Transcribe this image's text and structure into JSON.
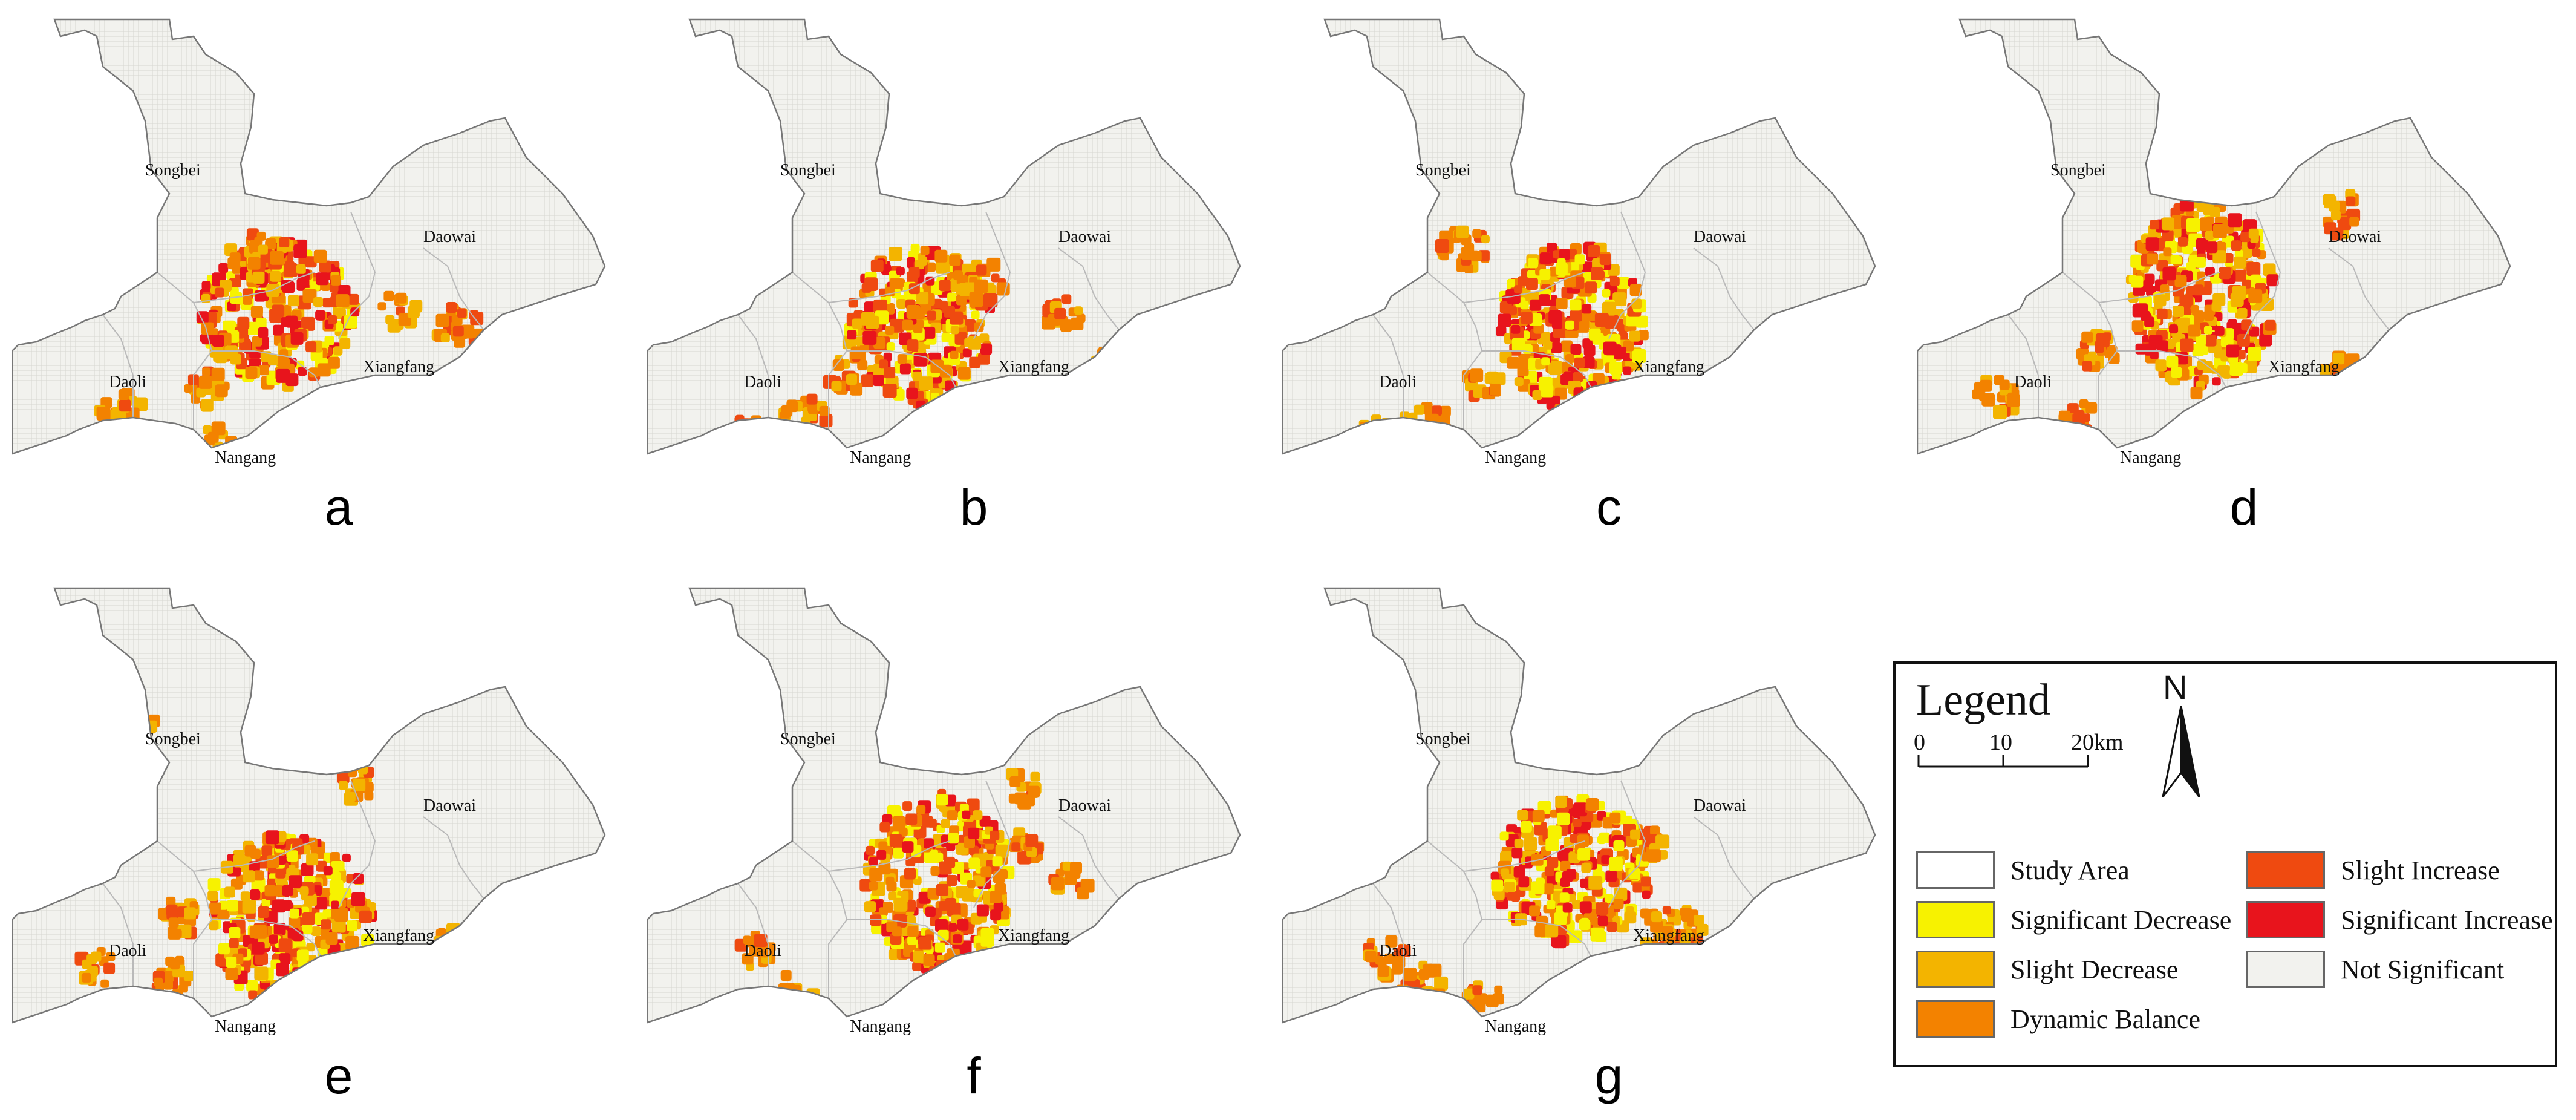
{
  "legend": {
    "title": "Legend",
    "scale": {
      "ticks": [
        "0",
        "10",
        "20km"
      ]
    },
    "north": "N",
    "items": [
      {
        "label": "Study Area",
        "color": "#ffffff"
      },
      {
        "label": "Significant Decrease",
        "color": "#f7f200"
      },
      {
        "label": "Slight Decrease",
        "color": "#f3b400"
      },
      {
        "label": "Dynamic Balance",
        "color": "#f38200"
      },
      {
        "label": "Slight Increase",
        "color": "#ef4a10"
      },
      {
        "label": "Significant Increase",
        "color": "#e8141c"
      },
      {
        "label": "Not Significant",
        "color": "#f2f2ee"
      }
    ]
  },
  "district_labels": {
    "songbei": "Songbei",
    "daowai": "Daowai",
    "daoli": "Daoli",
    "xiangfang": "Xiangfang",
    "nangang": "Nangang"
  },
  "panels": [
    {
      "letter": "a"
    },
    {
      "letter": "b"
    },
    {
      "letter": "c"
    },
    {
      "letter": "d"
    },
    {
      "letter": "e"
    },
    {
      "letter": "f"
    },
    {
      "letter": "g"
    }
  ]
}
